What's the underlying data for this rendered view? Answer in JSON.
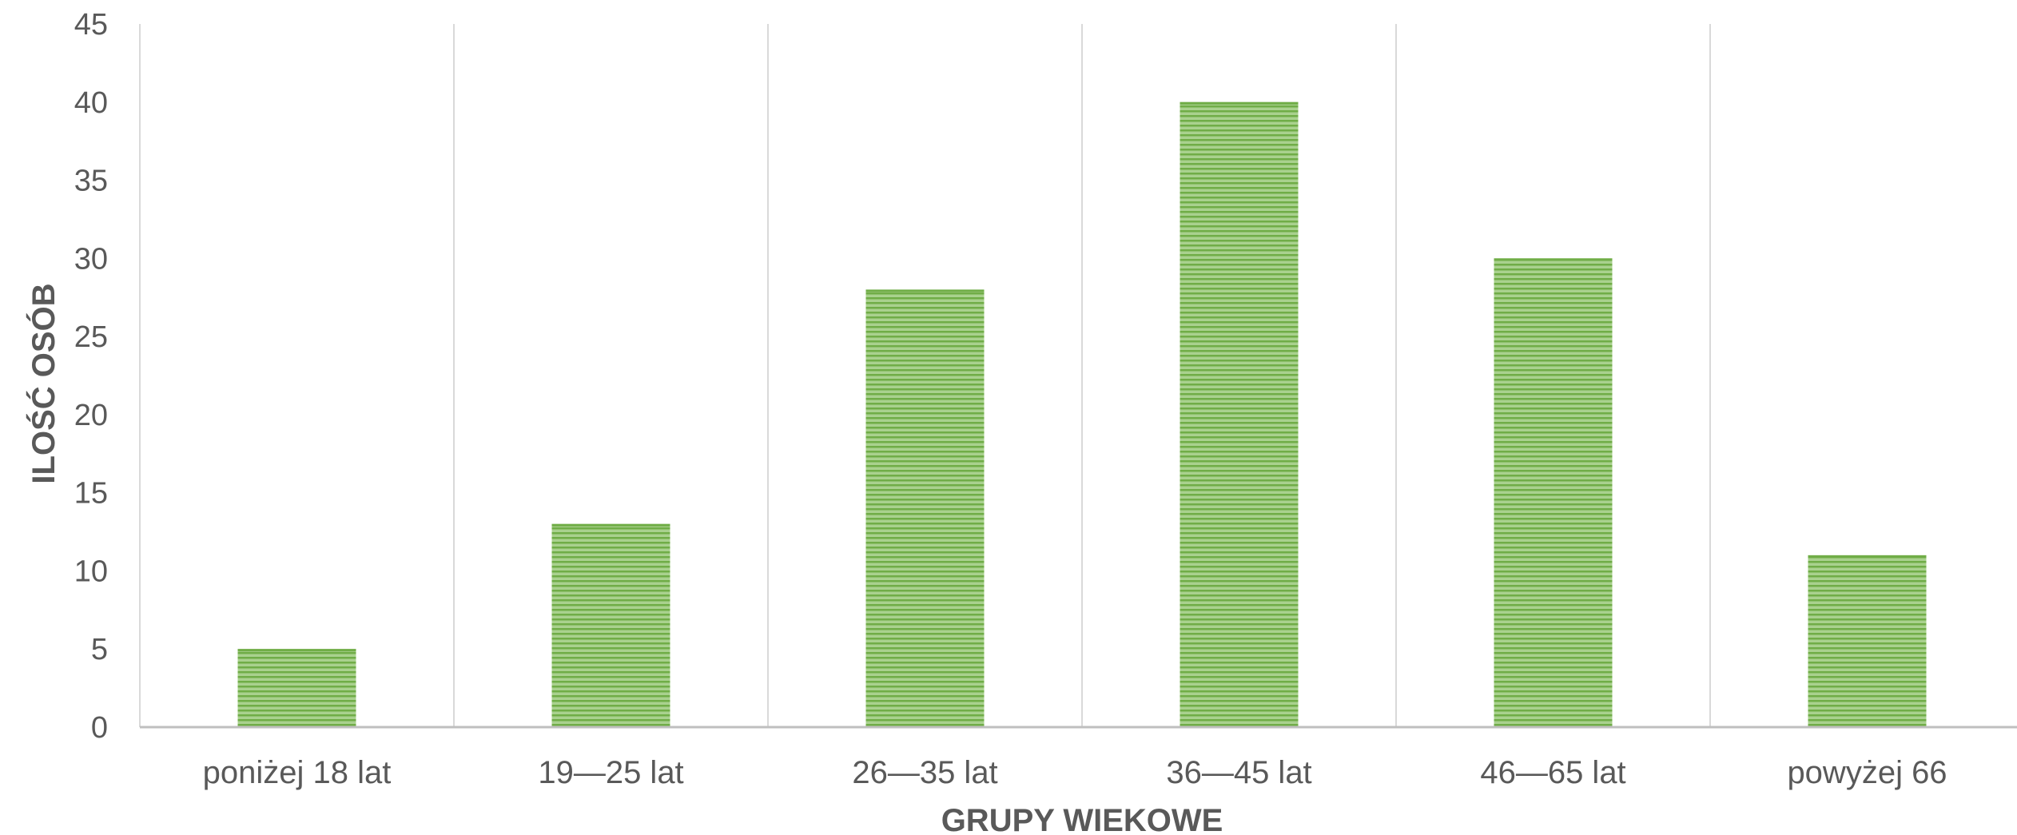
{
  "chart_data": {
    "type": "bar",
    "title": "",
    "xlabel": "GRUPY WIEKOWE",
    "ylabel": "ILOŚĆ OSÓB",
    "categories": [
      "poniżej 18 lat",
      "19—25 lat",
      "26—35 lat",
      "36—45 lat",
      "46—65 lat",
      "powyżej 66"
    ],
    "values": [
      5,
      13,
      28,
      40,
      30,
      11
    ],
    "ylim": [
      0,
      45
    ],
    "yticks": [
      "0",
      "5",
      "10",
      "15",
      "20",
      "25",
      "30",
      "35",
      "40",
      "45"
    ],
    "grid": "vertical category separators",
    "legend": "none",
    "colors": {
      "bar_fill": "#a9d18e",
      "bar_stripe": "#70ad47",
      "gridline": "#d9d9d9",
      "axis_line": "#bfbfbf",
      "text": "#595959"
    }
  }
}
